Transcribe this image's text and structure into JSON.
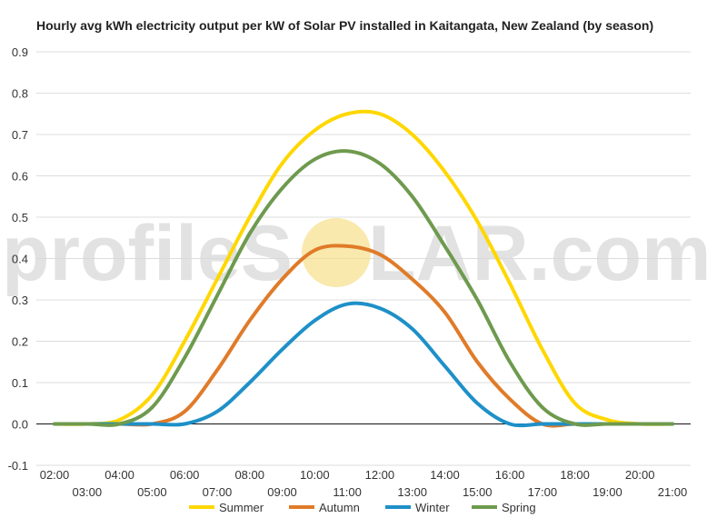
{
  "watermark": {
    "left": "profileS",
    "right": "LAR.com",
    "sun_color": "#f7e08a"
  },
  "chart_data": {
    "type": "line",
    "title": "Hourly avg kWh electricity output per kW of Solar PV installed in Kaitangata, New Zealand (by season)",
    "xlabel": "",
    "ylabel": "",
    "ylim": [
      -0.1,
      0.9
    ],
    "yticks": [
      "-0.1",
      "0.0",
      "0.1",
      "0.2",
      "0.3",
      "0.4",
      "0.5",
      "0.6",
      "0.7",
      "0.8",
      "0.9"
    ],
    "x": [
      "02:00",
      "03:00",
      "04:00",
      "05:00",
      "06:00",
      "07:00",
      "08:00",
      "09:00",
      "10:00",
      "11:00",
      "12:00",
      "13:00",
      "14:00",
      "15:00",
      "16:00",
      "17:00",
      "18:00",
      "19:00",
      "20:00",
      "21:00"
    ],
    "grid": true,
    "legend_position": "bottom",
    "series": [
      {
        "name": "Summer",
        "color": "#ffd700",
        "values": [
          0.0,
          0.0,
          0.01,
          0.07,
          0.2,
          0.35,
          0.5,
          0.63,
          0.71,
          0.75,
          0.75,
          0.7,
          0.61,
          0.49,
          0.34,
          0.18,
          0.05,
          0.01,
          0.0,
          0.0
        ]
      },
      {
        "name": "Autumn",
        "color": "#e07b29",
        "values": [
          0.0,
          0.0,
          0.0,
          0.0,
          0.03,
          0.13,
          0.25,
          0.35,
          0.42,
          0.43,
          0.41,
          0.35,
          0.27,
          0.15,
          0.06,
          0.0,
          0.0,
          0.0,
          0.0,
          0.0
        ]
      },
      {
        "name": "Winter",
        "color": "#1e90c8",
        "values": [
          0.0,
          0.0,
          0.0,
          0.0,
          0.0,
          0.03,
          0.1,
          0.18,
          0.25,
          0.29,
          0.28,
          0.23,
          0.14,
          0.05,
          0.0,
          0.0,
          0.0,
          0.0,
          0.0,
          0.0
        ]
      },
      {
        "name": "Spring",
        "color": "#6e9a4e",
        "values": [
          0.0,
          0.0,
          0.0,
          0.04,
          0.16,
          0.31,
          0.46,
          0.57,
          0.64,
          0.66,
          0.63,
          0.55,
          0.43,
          0.3,
          0.15,
          0.04,
          0.0,
          0.0,
          0.0,
          0.0
        ]
      }
    ]
  }
}
